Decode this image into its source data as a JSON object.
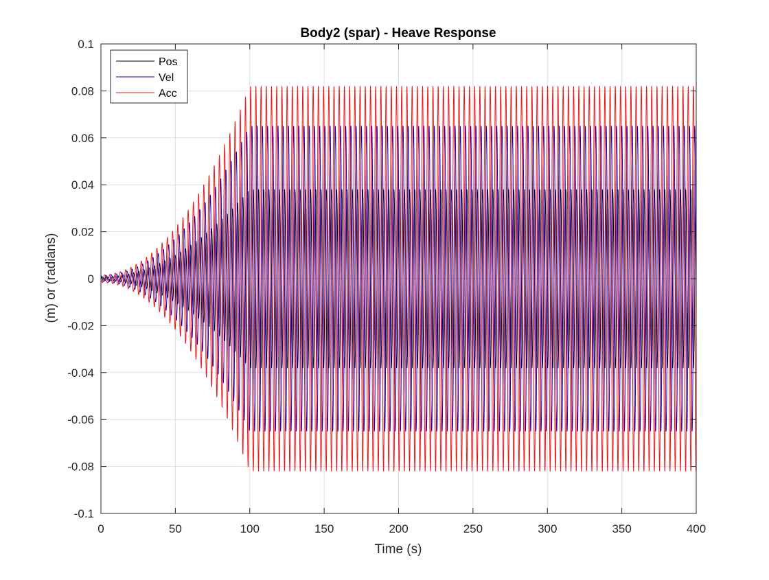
{
  "chart_data": {
    "type": "line",
    "title": "Body2 (spar) - Heave Response",
    "xlabel": "Time (s)",
    "ylabel": "(m) or (radians)",
    "xlim": [
      0,
      400
    ],
    "ylim": [
      -0.1,
      0.1
    ],
    "xticks": [
      0,
      50,
      100,
      150,
      200,
      250,
      300,
      350,
      400
    ],
    "xtick_labels": [
      "0",
      "50",
      "100",
      "150",
      "200",
      "250",
      "300",
      "350",
      "400"
    ],
    "yticks": [
      -0.1,
      -0.08,
      -0.06,
      -0.04,
      -0.02,
      0,
      0.02,
      0.04,
      0.06,
      0.08,
      0.1
    ],
    "ytick_labels": [
      "-0.1",
      "-0.08",
      "-0.06",
      "-0.04",
      "-0.02",
      "0",
      "0.02",
      "0.04",
      "0.06",
      "0.08",
      "0.1"
    ],
    "grid": true,
    "legend_position": "top-left",
    "signal": {
      "oscillation_period_s": 3.5,
      "ramp_start_s": 0,
      "ramp_end_s": 100,
      "start_amplitude_fraction": 0.02
    },
    "series": [
      {
        "name": "Pos",
        "color": "#000000",
        "amplitude": 0.038
      },
      {
        "name": "Vel",
        "color": "#0000cc",
        "amplitude": 0.065
      },
      {
        "name": "Acc",
        "color": "#e8191c",
        "amplitude": 0.082
      }
    ]
  }
}
